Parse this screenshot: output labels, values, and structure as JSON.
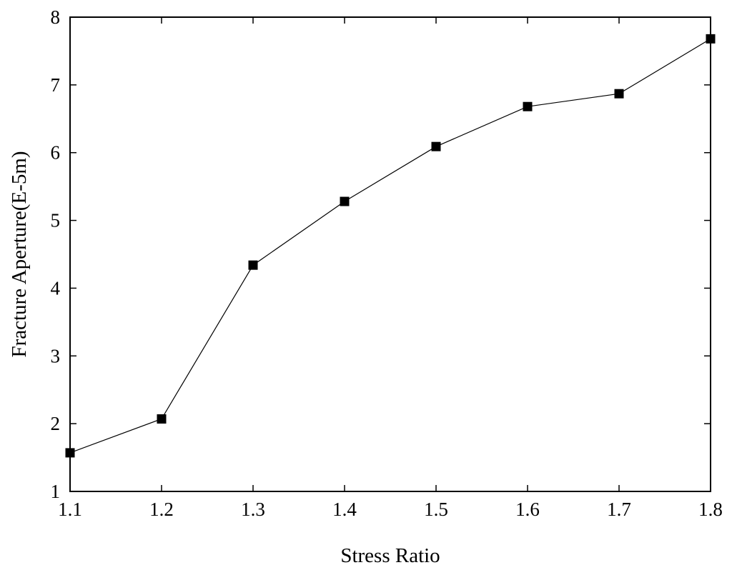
{
  "chart_data": {
    "type": "line",
    "title": "",
    "xlabel": "Stress Ratio",
    "ylabel": "Fracture Aperture(E-5m)",
    "xlim": [
      1.1,
      1.8
    ],
    "ylim": [
      1,
      8
    ],
    "xticks": [
      1.1,
      1.2,
      1.3,
      1.4,
      1.5,
      1.6,
      1.7,
      1.8
    ],
    "yticks": [
      1,
      2,
      3,
      4,
      5,
      6,
      7,
      8
    ],
    "xtick_labels": [
      "1.1",
      "1.2",
      "1.3",
      "1.4",
      "1.5",
      "1.6",
      "1.7",
      "1.8"
    ],
    "ytick_labels": [
      "1",
      "2",
      "3",
      "4",
      "5",
      "6",
      "7",
      "8"
    ],
    "grid": false,
    "legend": "none",
    "marker": "square",
    "color": "#000000",
    "series": [
      {
        "x": [
          1.1,
          1.2,
          1.3,
          1.4,
          1.5,
          1.6,
          1.7,
          1.8
        ],
        "y": [
          1.57,
          2.07,
          4.34,
          5.28,
          6.09,
          6.68,
          6.87,
          7.68
        ]
      }
    ]
  }
}
